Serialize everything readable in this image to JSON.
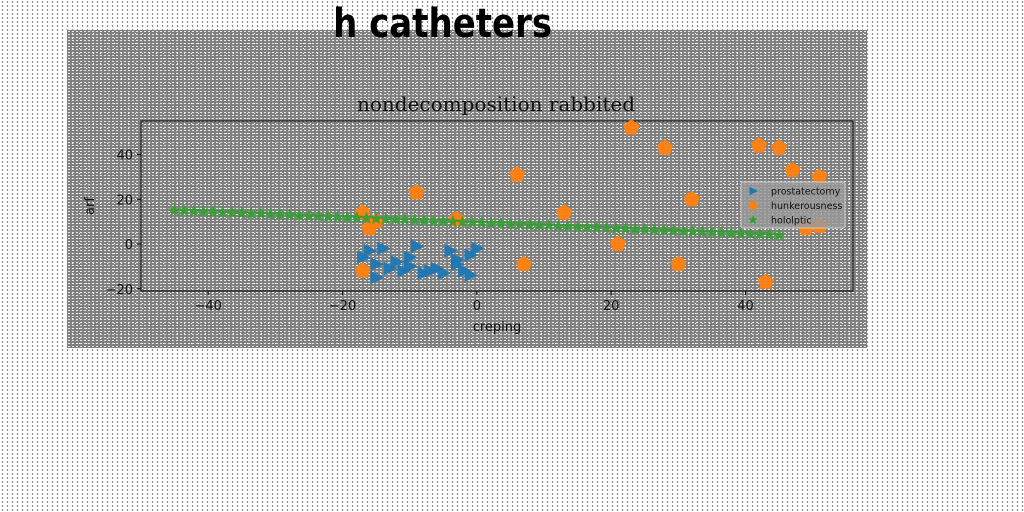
{
  "figure": {
    "suptitle": "h catheters"
  },
  "chart_data": {
    "type": "scatter",
    "title": "nondecomposition rabbited",
    "xlabel": "creping",
    "ylabel": "arf",
    "xlim": [
      -50,
      56
    ],
    "ylim": [
      -21,
      55
    ],
    "xticks": [
      -40,
      -20,
      0,
      20,
      40
    ],
    "yticks": [
      -20,
      0,
      20,
      40
    ],
    "xtick_labels": [
      "−40",
      "−20",
      "0",
      "20",
      "40"
    ],
    "ytick_labels": [
      "−20",
      "0",
      "20",
      "40"
    ],
    "grid": false,
    "legend_position": "right",
    "series": [
      {
        "name": "prostatectomy",
        "marker": "triangle-right",
        "color": "#1f77b4",
        "points": [
          [
            -16,
            -3
          ],
          [
            -14,
            -2
          ],
          [
            -17,
            -6
          ],
          [
            -15,
            -9
          ],
          [
            -13,
            -11
          ],
          [
            -15,
            -15
          ],
          [
            -11,
            -12
          ],
          [
            -10,
            -10
          ],
          [
            -9,
            -1
          ],
          [
            -10,
            -6
          ],
          [
            -8,
            -13
          ],
          [
            -7,
            -12
          ],
          [
            -6,
            -11
          ],
          [
            -5,
            -13
          ],
          [
            -4,
            -3
          ],
          [
            -3,
            -7
          ],
          [
            -2,
            -12
          ],
          [
            -1,
            -14
          ],
          [
            -1,
            -5
          ],
          [
            0,
            -2
          ],
          [
            -3,
            -9
          ],
          [
            -12,
            -8
          ]
        ]
      },
      {
        "name": "hunkerousness",
        "marker": "pentagon",
        "color": "#ff7f0e",
        "points": [
          [
            -17,
            14
          ],
          [
            -16,
            7
          ],
          [
            -15,
            10
          ],
          [
            -9,
            23
          ],
          [
            -3,
            11
          ],
          [
            6,
            31
          ],
          [
            7,
            -9
          ],
          [
            13,
            14
          ],
          [
            21,
            0
          ],
          [
            23,
            52
          ],
          [
            28,
            43
          ],
          [
            30,
            -9
          ],
          [
            32,
            20
          ],
          [
            42,
            44
          ],
          [
            43,
            -17
          ],
          [
            45,
            43
          ],
          [
            47,
            33
          ],
          [
            49,
            7
          ],
          [
            51,
            30
          ],
          [
            51,
            8
          ],
          [
            -17,
            -12
          ]
        ]
      },
      {
        "name": "hololptic",
        "marker": "star",
        "color": "#2ca02c",
        "x_start": -45,
        "x_end": 45,
        "count": 64,
        "y_start": 15,
        "y_end": 4
      }
    ]
  }
}
